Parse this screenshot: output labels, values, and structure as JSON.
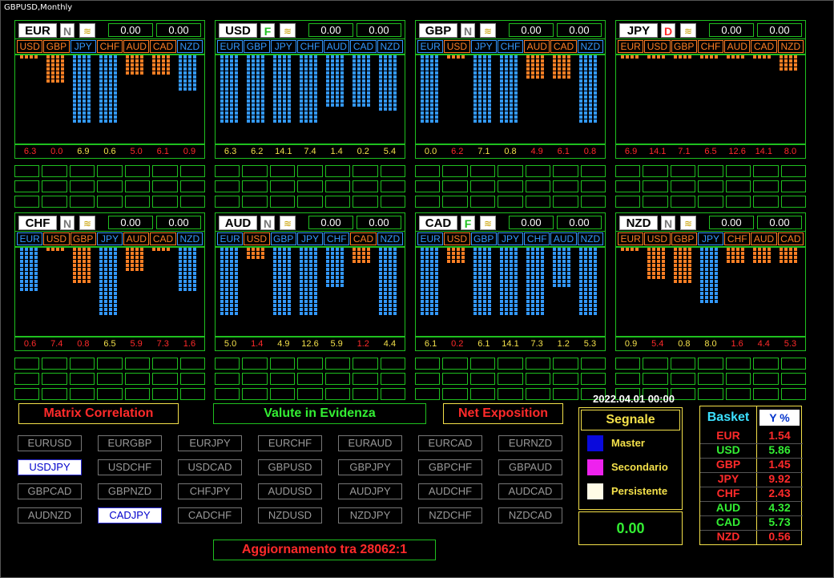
{
  "window": {
    "title": "GBPUSD,Monthly"
  },
  "colors": {
    "green": "#1fbf1f",
    "orange": "#ff7f24",
    "blue": "#3399ff",
    "red": "#ff2a2a",
    "yellow": "#f3e04a"
  },
  "panels": [
    {
      "currency": "EUR",
      "trend": "N",
      "val1": "0.00",
      "val2": "0.00",
      "chips": [
        {
          "label": "USD",
          "color": "#ff7f24"
        },
        {
          "label": "GBP",
          "color": "#ff7f24"
        },
        {
          "label": "JPY",
          "color": "#3399ff"
        },
        {
          "label": "CHF",
          "color": "#ff7f24"
        },
        {
          "label": "AUD",
          "color": "#ff7f24"
        },
        {
          "label": "CAD",
          "color": "#ff7f24"
        },
        {
          "label": "NZD",
          "color": "#3399ff"
        }
      ],
      "bars": [
        {
          "color": "#ff7f24",
          "value": 1
        },
        {
          "color": "#ff7f24",
          "value": 7
        },
        {
          "color": "#3399ff",
          "value": 17
        },
        {
          "color": "#3399ff",
          "value": 17
        },
        {
          "color": "#ff7f24",
          "value": 5
        },
        {
          "color": "#ff7f24",
          "value": 5
        },
        {
          "color": "#3399ff",
          "value": 9
        }
      ],
      "numbers": [
        {
          "v": "6.3",
          "c": "#ff2a2a"
        },
        {
          "v": "0.0",
          "c": "#ff2a2a"
        },
        {
          "v": "6.9",
          "c": "#f3e04a"
        },
        {
          "v": "0.6",
          "c": "#f3e04a"
        },
        {
          "v": "5.0",
          "c": "#ff2a2a"
        },
        {
          "v": "6.1",
          "c": "#ff2a2a"
        },
        {
          "v": "0.9",
          "c": "#ff2a2a"
        }
      ]
    },
    {
      "currency": "USD",
      "trend": "F",
      "val1": "0.00",
      "val2": "0.00",
      "chips": [
        {
          "label": "EUR",
          "color": "#3399ff"
        },
        {
          "label": "GBP",
          "color": "#3399ff"
        },
        {
          "label": "JPY",
          "color": "#3399ff"
        },
        {
          "label": "CHF",
          "color": "#3399ff"
        },
        {
          "label": "AUD",
          "color": "#3399ff"
        },
        {
          "label": "CAD",
          "color": "#3399ff"
        },
        {
          "label": "NZD",
          "color": "#3399ff"
        }
      ],
      "bars": [
        {
          "color": "#3399ff",
          "value": 17
        },
        {
          "color": "#3399ff",
          "value": 17
        },
        {
          "color": "#3399ff",
          "value": 17
        },
        {
          "color": "#3399ff",
          "value": 17
        },
        {
          "color": "#3399ff",
          "value": 13
        },
        {
          "color": "#3399ff",
          "value": 13
        },
        {
          "color": "#3399ff",
          "value": 14
        }
      ],
      "numbers": [
        {
          "v": "6.3",
          "c": "#f3e04a"
        },
        {
          "v": "6.2",
          "c": "#f3e04a"
        },
        {
          "v": "14.1",
          "c": "#f3e04a"
        },
        {
          "v": "7.4",
          "c": "#f3e04a"
        },
        {
          "v": "1.4",
          "c": "#f3e04a"
        },
        {
          "v": "0.2",
          "c": "#f3e04a"
        },
        {
          "v": "5.4",
          "c": "#f3e04a"
        }
      ]
    },
    {
      "currency": "GBP",
      "trend": "N",
      "val1": "0.00",
      "val2": "0.00",
      "chips": [
        {
          "label": "EUR",
          "color": "#3399ff"
        },
        {
          "label": "USD",
          "color": "#ff7f24"
        },
        {
          "label": "JPY",
          "color": "#3399ff"
        },
        {
          "label": "CHF",
          "color": "#3399ff"
        },
        {
          "label": "AUD",
          "color": "#ff7f24"
        },
        {
          "label": "CAD",
          "color": "#ff7f24"
        },
        {
          "label": "NZD",
          "color": "#3399ff"
        }
      ],
      "bars": [
        {
          "color": "#3399ff",
          "value": 17
        },
        {
          "color": "#ff7f24",
          "value": 1
        },
        {
          "color": "#3399ff",
          "value": 17
        },
        {
          "color": "#3399ff",
          "value": 17
        },
        {
          "color": "#ff7f24",
          "value": 6
        },
        {
          "color": "#ff7f24",
          "value": 6
        },
        {
          "color": "#3399ff",
          "value": 17
        }
      ],
      "numbers": [
        {
          "v": "0.0",
          "c": "#f3e04a"
        },
        {
          "v": "6.2",
          "c": "#ff2a2a"
        },
        {
          "v": "7.1",
          "c": "#f3e04a"
        },
        {
          "v": "0.8",
          "c": "#f3e04a"
        },
        {
          "v": "4.9",
          "c": "#ff2a2a"
        },
        {
          "v": "6.1",
          "c": "#ff2a2a"
        },
        {
          "v": "0.8",
          "c": "#ff2a2a"
        }
      ]
    },
    {
      "currency": "JPY",
      "trend": "D",
      "val1": "0.00",
      "val2": "0.00",
      "chips": [
        {
          "label": "EUR",
          "color": "#ff7f24"
        },
        {
          "label": "USD",
          "color": "#ff7f24"
        },
        {
          "label": "GBP",
          "color": "#ff7f24"
        },
        {
          "label": "CHF",
          "color": "#ff7f24"
        },
        {
          "label": "AUD",
          "color": "#ff7f24"
        },
        {
          "label": "CAD",
          "color": "#ff7f24"
        },
        {
          "label": "NZD",
          "color": "#ff7f24"
        }
      ],
      "bars": [
        {
          "color": "#ff7f24",
          "value": 1
        },
        {
          "color": "#ff7f24",
          "value": 1
        },
        {
          "color": "#ff7f24",
          "value": 1
        },
        {
          "color": "#ff7f24",
          "value": 1
        },
        {
          "color": "#ff7f24",
          "value": 1
        },
        {
          "color": "#ff7f24",
          "value": 1
        },
        {
          "color": "#ff7f24",
          "value": 4
        }
      ],
      "numbers": [
        {
          "v": "6.9",
          "c": "#ff2a2a"
        },
        {
          "v": "14.1",
          "c": "#ff2a2a"
        },
        {
          "v": "7.1",
          "c": "#ff2a2a"
        },
        {
          "v": "6.5",
          "c": "#ff2a2a"
        },
        {
          "v": "12.6",
          "c": "#ff2a2a"
        },
        {
          "v": "14.1",
          "c": "#ff2a2a"
        },
        {
          "v": "8.0",
          "c": "#ff2a2a"
        }
      ]
    },
    {
      "currency": "CHF",
      "trend": "N",
      "val1": "0.00",
      "val2": "0.00",
      "chips": [
        {
          "label": "EUR",
          "color": "#3399ff"
        },
        {
          "label": "USD",
          "color": "#ff7f24"
        },
        {
          "label": "GBP",
          "color": "#ff7f24"
        },
        {
          "label": "JPY",
          "color": "#3399ff"
        },
        {
          "label": "AUD",
          "color": "#ff7f24"
        },
        {
          "label": "CAD",
          "color": "#ff7f24"
        },
        {
          "label": "NZD",
          "color": "#3399ff"
        }
      ],
      "bars": [
        {
          "color": "#3399ff",
          "value": 11
        },
        {
          "color": "#ff7f24",
          "value": 1
        },
        {
          "color": "#ff7f24",
          "value": 9
        },
        {
          "color": "#3399ff",
          "value": 17
        },
        {
          "color": "#ff7f24",
          "value": 6
        },
        {
          "color": "#ff7f24",
          "value": 1
        },
        {
          "color": "#3399ff",
          "value": 11
        }
      ],
      "numbers": [
        {
          "v": "0.6",
          "c": "#ff2a2a"
        },
        {
          "v": "7.4",
          "c": "#ff2a2a"
        },
        {
          "v": "0.8",
          "c": "#ff2a2a"
        },
        {
          "v": "6.5",
          "c": "#f3e04a"
        },
        {
          "v": "5.9",
          "c": "#ff2a2a"
        },
        {
          "v": "7.3",
          "c": "#ff2a2a"
        },
        {
          "v": "1.6",
          "c": "#ff2a2a"
        }
      ]
    },
    {
      "currency": "AUD",
      "trend": "N",
      "val1": "0.00",
      "val2": "0.00",
      "chips": [
        {
          "label": "EUR",
          "color": "#3399ff"
        },
        {
          "label": "USD",
          "color": "#ff7f24"
        },
        {
          "label": "GBP",
          "color": "#3399ff"
        },
        {
          "label": "JPY",
          "color": "#3399ff"
        },
        {
          "label": "CHF",
          "color": "#3399ff"
        },
        {
          "label": "CAD",
          "color": "#ff7f24"
        },
        {
          "label": "NZD",
          "color": "#3399ff"
        }
      ],
      "bars": [
        {
          "color": "#3399ff",
          "value": 17
        },
        {
          "color": "#ff7f24",
          "value": 3
        },
        {
          "color": "#3399ff",
          "value": 17
        },
        {
          "color": "#3399ff",
          "value": 17
        },
        {
          "color": "#3399ff",
          "value": 10
        },
        {
          "color": "#ff7f24",
          "value": 4
        },
        {
          "color": "#3399ff",
          "value": 17
        }
      ],
      "numbers": [
        {
          "v": "5.0",
          "c": "#f3e04a"
        },
        {
          "v": "1.4",
          "c": "#ff2a2a"
        },
        {
          "v": "4.9",
          "c": "#f3e04a"
        },
        {
          "v": "12.6",
          "c": "#f3e04a"
        },
        {
          "v": "5.9",
          "c": "#f3e04a"
        },
        {
          "v": "1.2",
          "c": "#ff2a2a"
        },
        {
          "v": "4.4",
          "c": "#f3e04a"
        }
      ]
    },
    {
      "currency": "CAD",
      "trend": "F",
      "val1": "0.00",
      "val2": "0.00",
      "chips": [
        {
          "label": "EUR",
          "color": "#3399ff"
        },
        {
          "label": "USD",
          "color": "#ff7f24"
        },
        {
          "label": "GBP",
          "color": "#3399ff"
        },
        {
          "label": "JPY",
          "color": "#3399ff"
        },
        {
          "label": "CHF",
          "color": "#3399ff"
        },
        {
          "label": "AUD",
          "color": "#3399ff"
        },
        {
          "label": "NZD",
          "color": "#3399ff"
        }
      ],
      "bars": [
        {
          "color": "#3399ff",
          "value": 17
        },
        {
          "color": "#ff7f24",
          "value": 4
        },
        {
          "color": "#3399ff",
          "value": 17
        },
        {
          "color": "#3399ff",
          "value": 17
        },
        {
          "color": "#3399ff",
          "value": 17
        },
        {
          "color": "#3399ff",
          "value": 10
        },
        {
          "color": "#3399ff",
          "value": 17
        }
      ],
      "numbers": [
        {
          "v": "6.1",
          "c": "#f3e04a"
        },
        {
          "v": "0.2",
          "c": "#ff2a2a"
        },
        {
          "v": "6.1",
          "c": "#f3e04a"
        },
        {
          "v": "14.1",
          "c": "#f3e04a"
        },
        {
          "v": "7.3",
          "c": "#f3e04a"
        },
        {
          "v": "1.2",
          "c": "#f3e04a"
        },
        {
          "v": "5.3",
          "c": "#f3e04a"
        }
      ]
    },
    {
      "currency": "NZD",
      "trend": "N",
      "val1": "0.00",
      "val2": "0.00",
      "chips": [
        {
          "label": "EUR",
          "color": "#ff7f24"
        },
        {
          "label": "USD",
          "color": "#ff7f24"
        },
        {
          "label": "GBP",
          "color": "#ff7f24"
        },
        {
          "label": "JPY",
          "color": "#3399ff"
        },
        {
          "label": "CHF",
          "color": "#ff7f24"
        },
        {
          "label": "AUD",
          "color": "#ff7f24"
        },
        {
          "label": "CAD",
          "color": "#ff7f24"
        }
      ],
      "bars": [
        {
          "color": "#ff7f24",
          "value": 1
        },
        {
          "color": "#ff7f24",
          "value": 8
        },
        {
          "color": "#ff7f24",
          "value": 9
        },
        {
          "color": "#3399ff",
          "value": 14
        },
        {
          "color": "#ff7f24",
          "value": 4
        },
        {
          "color": "#ff7f24",
          "value": 4
        },
        {
          "color": "#ff7f24",
          "value": 4
        }
      ],
      "numbers": [
        {
          "v": "0.9",
          "c": "#f3e04a"
        },
        {
          "v": "5.4",
          "c": "#ff2a2a"
        },
        {
          "v": "0.8",
          "c": "#f3e04a"
        },
        {
          "v": "8.0",
          "c": "#f3e04a"
        },
        {
          "v": "1.6",
          "c": "#ff2a2a"
        },
        {
          "v": "4.4",
          "c": "#ff2a2a"
        },
        {
          "v": "5.3",
          "c": "#ff2a2a"
        }
      ]
    }
  ],
  "buttons": {
    "matrix": "Matrix Correlation",
    "valute": "Valute in Evidenza",
    "net": "Net Exposition",
    "aggiornamento": "Aggiornamento tra  28062:1"
  },
  "pairs": [
    {
      "label": "EURUSD",
      "selected": false
    },
    {
      "label": "EURGBP",
      "selected": false
    },
    {
      "label": "EURJPY",
      "selected": false
    },
    {
      "label": "EURCHF",
      "selected": false
    },
    {
      "label": "EURAUD",
      "selected": false
    },
    {
      "label": "EURCAD",
      "selected": false
    },
    {
      "label": "EURNZD",
      "selected": false
    },
    {
      "label": "USDJPY",
      "selected": true
    },
    {
      "label": "USDCHF",
      "selected": false
    },
    {
      "label": "USDCAD",
      "selected": false
    },
    {
      "label": "GBPUSD",
      "selected": false
    },
    {
      "label": "GBPJPY",
      "selected": false
    },
    {
      "label": "GBPCHF",
      "selected": false
    },
    {
      "label": "GBPAUD",
      "selected": false
    },
    {
      "label": "GBPCAD",
      "selected": false
    },
    {
      "label": "GBPNZD",
      "selected": false
    },
    {
      "label": "CHFJPY",
      "selected": false
    },
    {
      "label": "AUDUSD",
      "selected": false
    },
    {
      "label": "AUDJPY",
      "selected": false
    },
    {
      "label": "AUDCHF",
      "selected": false
    },
    {
      "label": "AUDCAD",
      "selected": false
    },
    {
      "label": "AUDNZD",
      "selected": false
    },
    {
      "label": "CADJPY",
      "selected": true
    },
    {
      "label": "CADCHF",
      "selected": false
    },
    {
      "label": "NZDUSD",
      "selected": false
    },
    {
      "label": "NZDJPY",
      "selected": false
    },
    {
      "label": "NZDCHF",
      "selected": false
    },
    {
      "label": "NZDCAD",
      "selected": false
    }
  ],
  "signal": {
    "datetime": "2022.04.01 00:00",
    "title": "Segnale",
    "rows": [
      {
        "label": "Master",
        "color": "#0a0adc"
      },
      {
        "label": "Secondario",
        "color": "#ee22ee"
      },
      {
        "label": "Persistente",
        "color": "#fffbe6"
      }
    ],
    "value": "0.00"
  },
  "basket": {
    "header1": "Basket",
    "header2": "Y %",
    "rows": [
      {
        "name": "EUR",
        "value": "1.54",
        "color": "#ff2a2a"
      },
      {
        "name": "USD",
        "value": "5.86",
        "color": "#33ee33"
      },
      {
        "name": "GBP",
        "value": "1.45",
        "color": "#ff2a2a"
      },
      {
        "name": "JPY",
        "value": "9.92",
        "color": "#ff2a2a"
      },
      {
        "name": "CHF",
        "value": "2.43",
        "color": "#ff2a2a"
      },
      {
        "name": "AUD",
        "value": "4.32",
        "color": "#33ee33"
      },
      {
        "name": "CAD",
        "value": "5.73",
        "color": "#33ee33"
      },
      {
        "name": "NZD",
        "value": "0.56",
        "color": "#ff2a2a"
      }
    ]
  }
}
